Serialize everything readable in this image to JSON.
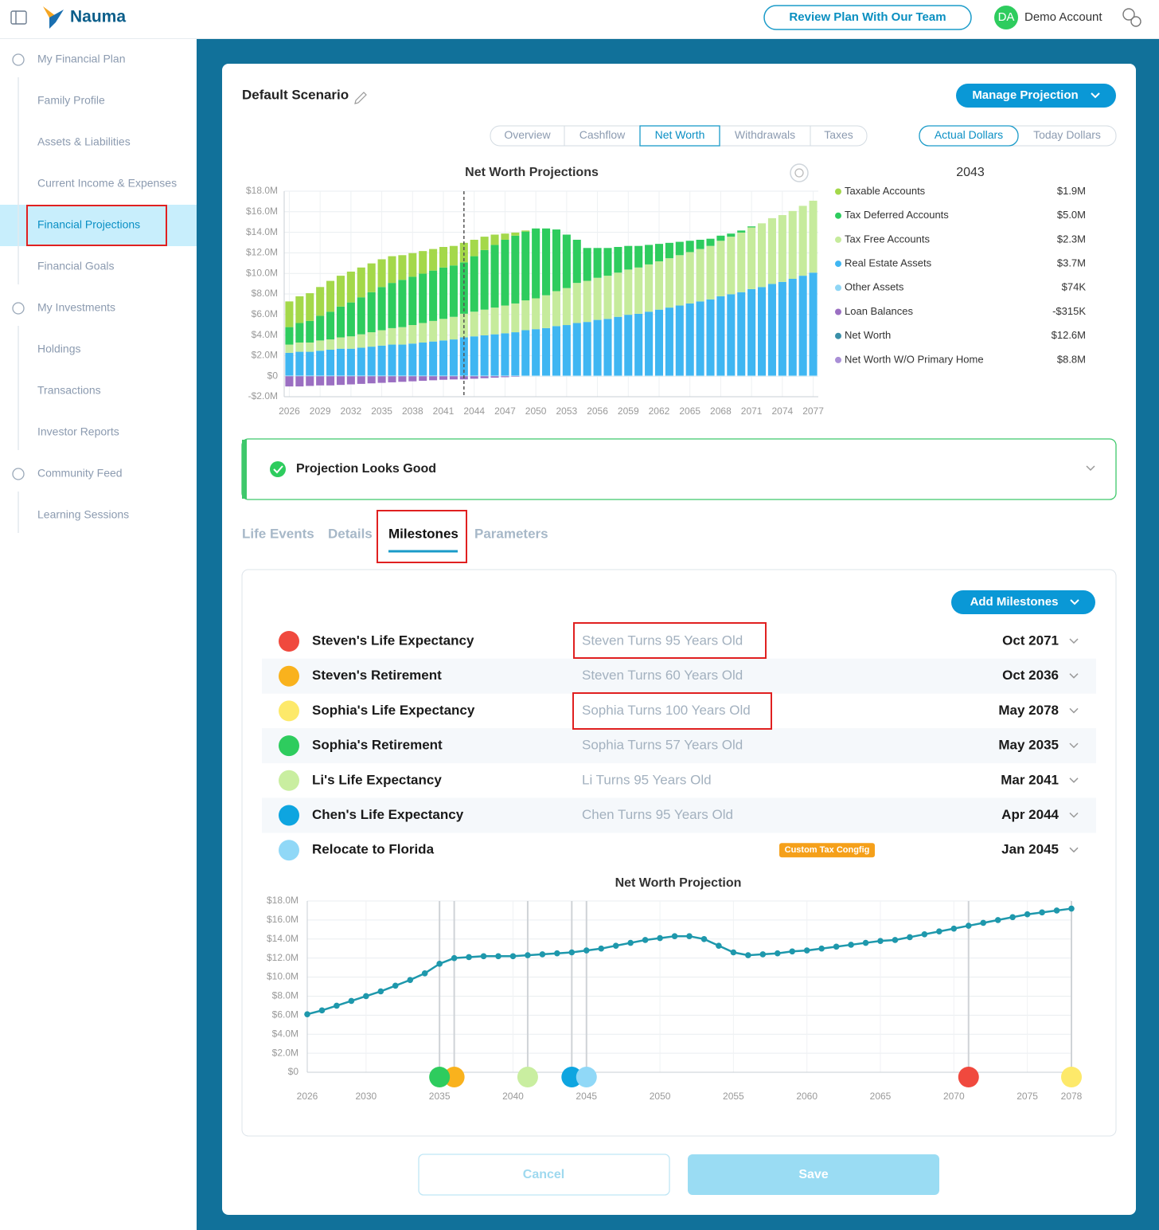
{
  "header": {
    "brand": "Nauma",
    "review_button": "Review Plan With Our Team",
    "avatar": "DA",
    "account": "Demo Account"
  },
  "sidebar": [
    {
      "label": "My Financial Plan",
      "children": [
        "Family Profile",
        "Assets & Liabilities",
        "Current Income & Expenses",
        "Financial Projections",
        "Financial Goals"
      ]
    },
    {
      "label": "My Investments",
      "children": [
        "Holdings",
        "Transactions",
        "Investor Reports"
      ]
    },
    {
      "label": "Community Feed",
      "children": [
        "Learning Sessions"
      ]
    }
  ],
  "scenario": {
    "title": "Default Scenario",
    "manage_button": "Manage Projection",
    "view_tabs": [
      "Overview",
      "Cashflow",
      "Net Worth",
      "Withdrawals",
      "Taxes"
    ],
    "dollar_tabs": [
      "Actual Dollars",
      "Today Dollars"
    ]
  },
  "chart_data": [
    {
      "type": "stacked_bar",
      "title": "Net Worth Projections",
      "x": [
        2026,
        2027,
        2028,
        2029,
        2030,
        2031,
        2032,
        2033,
        2034,
        2035,
        2036,
        2037,
        2038,
        2039,
        2040,
        2041,
        2042,
        2043,
        2044,
        2045,
        2046,
        2047,
        2048,
        2049,
        2050,
        2051,
        2052,
        2053,
        2054,
        2055,
        2056,
        2057,
        2058,
        2059,
        2060,
        2061,
        2062,
        2063,
        2064,
        2065,
        2066,
        2067,
        2068,
        2069,
        2070,
        2071,
        2072,
        2073,
        2074,
        2075,
        2076,
        2077
      ],
      "xlim": [
        2025.5,
        2077.5
      ],
      "xticks": [
        2026,
        2029,
        2032,
        2035,
        2038,
        2041,
        2044,
        2047,
        2050,
        2053,
        2056,
        2059,
        2062,
        2065,
        2068,
        2071,
        2074,
        2077
      ],
      "ylim": [
        -2,
        18
      ],
      "yticks": [
        {
          "value": -2,
          "label": "-$2.0M"
        },
        {
          "value": 0,
          "label": "$0"
        },
        {
          "value": 2,
          "label": "$2.0M"
        },
        {
          "value": 4,
          "label": "$4.0M"
        },
        {
          "value": 6,
          "label": "$6.0M"
        },
        {
          "value": 8,
          "label": "$8.0M"
        },
        {
          "value": 10,
          "label": "$10.0M"
        },
        {
          "value": 12,
          "label": "$12.0M"
        },
        {
          "value": 14,
          "label": "$14.0M"
        },
        {
          "value": 16,
          "label": "$16.0M"
        },
        {
          "value": 18,
          "label": "$18.0M"
        }
      ],
      "grid": true,
      "highlight_x": 2043,
      "highlight_year": "2043",
      "series": [
        {
          "name": "Taxable Accounts",
          "color": "#a4d84a",
          "hover_label": "$1.9M",
          "values": [
            2.5,
            2.6,
            2.7,
            2.8,
            3.0,
            3.0,
            3.0,
            2.9,
            2.8,
            2.7,
            2.6,
            2.4,
            2.3,
            2.2,
            2.1,
            2.0,
            1.9,
            1.9,
            1.6,
            1.3,
            1.0,
            0.6,
            0.3,
            0.1,
            0,
            0,
            0,
            0,
            0,
            0,
            0,
            0,
            0,
            0,
            0,
            0,
            0,
            0,
            0,
            0,
            0,
            0,
            0,
            0,
            0,
            0,
            0,
            0,
            0,
            0,
            0,
            0
          ]
        },
        {
          "name": "Tax Deferred Accounts",
          "color": "#2ecc5e",
          "hover_label": "$5.0M",
          "values": [
            1.7,
            1.9,
            2.1,
            2.4,
            2.7,
            3.0,
            3.3,
            3.6,
            3.9,
            4.2,
            4.4,
            4.6,
            4.7,
            4.8,
            4.9,
            5.0,
            5.0,
            5.0,
            5.4,
            5.8,
            6.1,
            6.4,
            6.6,
            6.7,
            6.8,
            6.5,
            6.0,
            5.2,
            4.2,
            3.2,
            2.9,
            2.7,
            2.5,
            2.3,
            2.1,
            1.9,
            1.7,
            1.5,
            1.3,
            1.1,
            0.9,
            0.7,
            0.5,
            0.3,
            0.2,
            0.1,
            0,
            0,
            0,
            0,
            0,
            0
          ]
        },
        {
          "name": "Tax Free Accounts",
          "color": "#c6eb9c",
          "hover_label": "$2.3M",
          "values": [
            0.8,
            0.9,
            0.9,
            1.0,
            1.0,
            1.1,
            1.2,
            1.3,
            1.4,
            1.5,
            1.6,
            1.7,
            1.8,
            1.9,
            2.0,
            2.1,
            2.2,
            2.3,
            2.4,
            2.5,
            2.6,
            2.7,
            2.8,
            2.9,
            3.0,
            3.2,
            3.4,
            3.6,
            3.9,
            4.0,
            4.1,
            4.2,
            4.3,
            4.4,
            4.5,
            4.6,
            4.7,
            4.8,
            4.9,
            5.0,
            5.1,
            5.2,
            5.4,
            5.6,
            5.8,
            6.0,
            6.2,
            6.4,
            6.5,
            6.6,
            6.8,
            7.0
          ]
        },
        {
          "name": "Real Estate Assets",
          "color": "#3fb6f2",
          "hover_label": "$3.7M",
          "values": [
            2.2,
            2.3,
            2.3,
            2.4,
            2.5,
            2.6,
            2.6,
            2.7,
            2.8,
            2.9,
            3.0,
            3.0,
            3.1,
            3.2,
            3.3,
            3.4,
            3.5,
            3.7,
            3.8,
            3.9,
            4.0,
            4.1,
            4.2,
            4.4,
            4.5,
            4.6,
            4.8,
            4.9,
            5.1,
            5.2,
            5.4,
            5.5,
            5.7,
            5.9,
            6.0,
            6.2,
            6.4,
            6.6,
            6.8,
            7.0,
            7.2,
            7.4,
            7.7,
            7.9,
            8.1,
            8.4,
            8.6,
            8.9,
            9.1,
            9.4,
            9.7,
            10.0
          ]
        },
        {
          "name": "Other Assets",
          "color": "#8fd6f5",
          "hover_label": "$74K",
          "values": [
            0.074,
            0.074,
            0.074,
            0.074,
            0.074,
            0.074,
            0.074,
            0.074,
            0.074,
            0.074,
            0.074,
            0.074,
            0.074,
            0.074,
            0.074,
            0.074,
            0.074,
            0.074,
            0.074,
            0.074,
            0.074,
            0.074,
            0.074,
            0.074,
            0.074,
            0.074,
            0.074,
            0.074,
            0.074,
            0.074,
            0.074,
            0.074,
            0.074,
            0.074,
            0.074,
            0.074,
            0.074,
            0.074,
            0.074,
            0.074,
            0.074,
            0.074,
            0.074,
            0.074,
            0.074,
            0.074,
            0.074,
            0.074,
            0.074,
            0.074,
            0.074,
            0.074
          ]
        },
        {
          "name": "Loan Balances",
          "color": "#9b6fc2",
          "hover_label": "-$315K",
          "values": [
            -1.0,
            -1.0,
            -0.95,
            -0.9,
            -0.9,
            -0.85,
            -0.8,
            -0.75,
            -0.7,
            -0.65,
            -0.6,
            -0.55,
            -0.5,
            -0.45,
            -0.4,
            -0.35,
            -0.32,
            -0.315,
            -0.25,
            -0.2,
            -0.15,
            -0.1,
            -0.05,
            0,
            0,
            0,
            0,
            0,
            0,
            0,
            0,
            0,
            0,
            0,
            0,
            0,
            0,
            0,
            0,
            0,
            0,
            0,
            0,
            0,
            0,
            0,
            0,
            0,
            0,
            0,
            0,
            0
          ]
        }
      ],
      "summary": [
        {
          "name": "Net Worth",
          "color": "#3a8fa8",
          "value": "$12.6M"
        },
        {
          "name": "Net Worth W/O Primary Home",
          "color": "#a98fd6",
          "value": "$8.8M"
        }
      ]
    },
    {
      "type": "line",
      "title": "Net Worth Projection",
      "color": "#1e98ac",
      "x": [
        2026,
        2027,
        2028,
        2029,
        2030,
        2031,
        2032,
        2033,
        2034,
        2035,
        2036,
        2037,
        2038,
        2039,
        2040,
        2041,
        2042,
        2043,
        2044,
        2045,
        2046,
        2047,
        2048,
        2049,
        2050,
        2051,
        2052,
        2053,
        2054,
        2055,
        2056,
        2057,
        2058,
        2059,
        2060,
        2061,
        2062,
        2063,
        2064,
        2065,
        2066,
        2067,
        2068,
        2069,
        2070,
        2071,
        2072,
        2073,
        2074,
        2075,
        2076,
        2077,
        2078
      ],
      "values": [
        6.1,
        6.5,
        7.0,
        7.5,
        8.0,
        8.5,
        9.1,
        9.7,
        10.4,
        11.4,
        12.0,
        12.1,
        12.2,
        12.2,
        12.2,
        12.3,
        12.4,
        12.5,
        12.6,
        12.8,
        13.0,
        13.3,
        13.6,
        13.9,
        14.1,
        14.3,
        14.3,
        14.0,
        13.3,
        12.6,
        12.3,
        12.4,
        12.5,
        12.7,
        12.8,
        13.0,
        13.2,
        13.4,
        13.6,
        13.8,
        13.9,
        14.2,
        14.5,
        14.8,
        15.1,
        15.4,
        15.7,
        16.0,
        16.3,
        16.6,
        16.8,
        17.0,
        17.2
      ],
      "xlim": [
        2026,
        2078
      ],
      "xticks": [
        2026,
        2030,
        2035,
        2040,
        2045,
        2050,
        2055,
        2060,
        2065,
        2070,
        2075,
        2078
      ],
      "ylim": [
        0,
        18
      ],
      "yticks": [
        {
          "value": 0,
          "label": "$0"
        },
        {
          "value": 2,
          "label": "$2.0M"
        },
        {
          "value": 4,
          "label": "$4.0M"
        },
        {
          "value": 6,
          "label": "$6.0M"
        },
        {
          "value": 8,
          "label": "$8.0M"
        },
        {
          "value": 10,
          "label": "$10.0M"
        },
        {
          "value": 12,
          "label": "$12.0M"
        },
        {
          "value": 14,
          "label": "$14.0M"
        },
        {
          "value": 16,
          "label": "$16.0M"
        },
        {
          "value": 18,
          "label": "$18.0M"
        }
      ],
      "grid": true,
      "markers": [
        {
          "x": 2071,
          "color": "#f0493e"
        },
        {
          "x": 2036,
          "color": "#f9b21d"
        },
        {
          "x": 2078,
          "color": "#fde96a"
        },
        {
          "x": 2035,
          "color": "#2ecc5e"
        },
        {
          "x": 2041,
          "color": "#c9eea0"
        },
        {
          "x": 2044,
          "color": "#0ea5e0"
        },
        {
          "x": 2045,
          "color": "#90d8f7"
        }
      ]
    }
  ],
  "status": "Projection Looks Good",
  "section_tabs": [
    "Life Events",
    "Details",
    "Milestones",
    "Parameters"
  ],
  "milestones": {
    "add_button": "Add Milestones",
    "items": [
      {
        "label": "Steven's Life Expectancy",
        "description": "Steven Turns 95 Years Old",
        "date": "Oct 2071",
        "color": "#f0493e"
      },
      {
        "label": "Steven's Retirement",
        "description": "Steven Turns 60 Years Old",
        "date": "Oct 2036",
        "color": "#f9b21d"
      },
      {
        "label": "Sophia's Life Expectancy",
        "description": "Sophia Turns 100 Years Old",
        "date": "May 2078",
        "color": "#fde96a"
      },
      {
        "label": "Sophia's Retirement",
        "description": "Sophia Turns 57 Years Old",
        "date": "May 2035",
        "color": "#2ecc5e"
      },
      {
        "label": "Li's Life Expectancy",
        "description": "Li Turns 95 Years Old",
        "date": "Mar 2041",
        "color": "#c9eea0"
      },
      {
        "label": "Chen's Life Expectancy",
        "description": "Chen Turns 95 Years Old",
        "date": "Apr 2044",
        "color": "#0ea5e0"
      },
      {
        "label": "Relocate to Florida",
        "badge": "Custom Tax Congfig",
        "date": "Jan 2045",
        "color": "#90d8f7"
      }
    ]
  },
  "buttons": {
    "cancel": "Cancel",
    "save": "Save"
  }
}
